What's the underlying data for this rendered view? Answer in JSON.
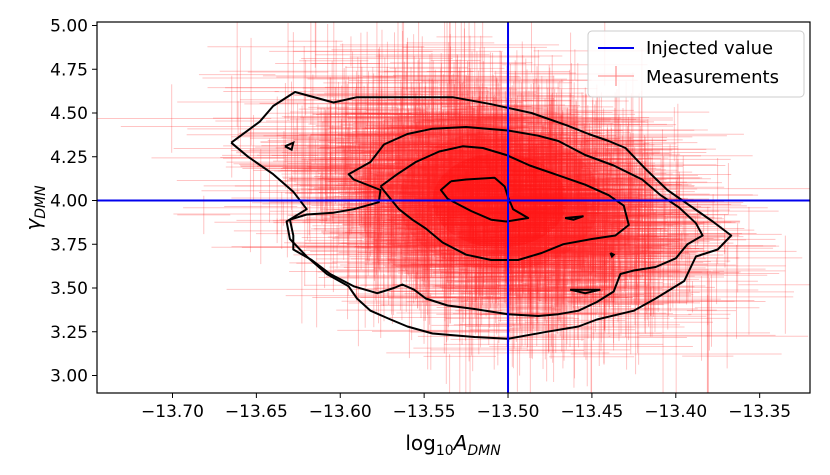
{
  "chart_data": {
    "type": "scatter",
    "title": "",
    "xlabel": "log10ADMN",
    "xlabel_parts": {
      "prefix": "log",
      "sub": "10",
      "symbol": "A",
      "symbol_sub": "DMN"
    },
    "ylabel": "γDMN",
    "ylabel_parts": {
      "symbol": "γ",
      "symbol_sub": "DMN"
    },
    "xlim": [
      -13.745,
      -13.32
    ],
    "ylim": [
      2.9,
      5.02
    ],
    "x_ticks": [
      -13.7,
      -13.65,
      -13.6,
      -13.55,
      -13.5,
      -13.45,
      -13.4,
      -13.35
    ],
    "x_tick_labels": [
      "−13.70",
      "−13.65",
      "−13.60",
      "−13.55",
      "−13.50",
      "−13.45",
      "−13.40",
      "−13.35"
    ],
    "y_ticks": [
      3.0,
      3.25,
      3.5,
      3.75,
      4.0,
      4.25,
      4.5,
      4.75,
      5.0
    ],
    "y_tick_labels": [
      "3.00",
      "3.25",
      "3.50",
      "3.75",
      "4.00",
      "4.25",
      "4.50",
      "4.75",
      "5.00"
    ],
    "grid": false,
    "injected_value": {
      "x": -13.5,
      "y": 4.0
    },
    "legend": {
      "position": "upper-right",
      "entries": [
        {
          "label": "Injected value",
          "style": "line",
          "color": "#0000ee"
        },
        {
          "label": "Measurements",
          "style": "errorbar",
          "color": "#ff8080"
        }
      ]
    },
    "measurement_cloud": {
      "n_points": 2000,
      "center_x": -13.505,
      "center_y": 4.0,
      "sigma_x": 0.052,
      "sigma_y": 0.32,
      "correlation": -0.35,
      "typical_x_error": 0.04,
      "typical_y_error": 0.22,
      "color": "#ff2a2a"
    },
    "contours": [
      {
        "level": "outer",
        "points": [
          [
            -13.665,
            4.33
          ],
          [
            -13.648,
            4.45
          ],
          [
            -13.64,
            4.54
          ],
          [
            -13.627,
            4.62
          ],
          [
            -13.604,
            4.56
          ],
          [
            -13.59,
            4.59
          ],
          [
            -13.567,
            4.59
          ],
          [
            -13.552,
            4.59
          ],
          [
            -13.533,
            4.59
          ],
          [
            -13.51,
            4.55
          ],
          [
            -13.486,
            4.5
          ],
          [
            -13.465,
            4.43
          ],
          [
            -13.452,
            4.38
          ],
          [
            -13.44,
            4.34
          ],
          [
            -13.43,
            4.3
          ],
          [
            -13.418,
            4.18
          ],
          [
            -13.405,
            4.06
          ],
          [
            -13.39,
            3.96
          ],
          [
            -13.378,
            3.88
          ],
          [
            -13.367,
            3.8
          ],
          [
            -13.375,
            3.72
          ],
          [
            -13.388,
            3.68
          ],
          [
            -13.395,
            3.54
          ],
          [
            -13.412,
            3.44
          ],
          [
            -13.425,
            3.37
          ],
          [
            -13.447,
            3.32
          ],
          [
            -13.458,
            3.28
          ],
          [
            -13.477,
            3.25
          ],
          [
            -13.5,
            3.21
          ],
          [
            -13.52,
            3.22
          ],
          [
            -13.545,
            3.24
          ],
          [
            -13.56,
            3.28
          ],
          [
            -13.57,
            3.32
          ],
          [
            -13.582,
            3.37
          ],
          [
            -13.59,
            3.44
          ],
          [
            -13.595,
            3.51
          ],
          [
            -13.608,
            3.58
          ],
          [
            -13.62,
            3.68
          ],
          [
            -13.63,
            3.78
          ],
          [
            -13.632,
            3.88
          ],
          [
            -13.62,
            3.95
          ],
          [
            -13.628,
            4.05
          ],
          [
            -13.64,
            4.15
          ],
          [
            -13.655,
            4.25
          ],
          [
            -13.665,
            4.33
          ]
        ]
      },
      {
        "level": "middle",
        "points": [
          [
            -13.63,
            3.89
          ],
          [
            -13.62,
            3.92
          ],
          [
            -13.604,
            3.93
          ],
          [
            -13.592,
            3.95
          ],
          [
            -13.577,
            3.99
          ],
          [
            -13.576,
            4.06
          ],
          [
            -13.592,
            4.12
          ],
          [
            -13.595,
            4.15
          ],
          [
            -13.582,
            4.22
          ],
          [
            -13.574,
            4.32
          ],
          [
            -13.56,
            4.38
          ],
          [
            -13.545,
            4.41
          ],
          [
            -13.525,
            4.42
          ],
          [
            -13.5,
            4.4
          ],
          [
            -13.482,
            4.37
          ],
          [
            -13.47,
            4.34
          ],
          [
            -13.454,
            4.26
          ],
          [
            -13.437,
            4.2
          ],
          [
            -13.42,
            4.12
          ],
          [
            -13.409,
            4.03
          ],
          [
            -13.398,
            3.96
          ],
          [
            -13.388,
            3.87
          ],
          [
            -13.384,
            3.8
          ],
          [
            -13.393,
            3.75
          ],
          [
            -13.4,
            3.67
          ],
          [
            -13.412,
            3.62
          ],
          [
            -13.425,
            3.6
          ],
          [
            -13.433,
            3.58
          ],
          [
            -13.437,
            3.48
          ],
          [
            -13.447,
            3.42
          ],
          [
            -13.458,
            3.37
          ],
          [
            -13.47,
            3.35
          ],
          [
            -13.482,
            3.34
          ],
          [
            -13.5,
            3.35
          ],
          [
            -13.52,
            3.38
          ],
          [
            -13.536,
            3.4
          ],
          [
            -13.549,
            3.44
          ],
          [
            -13.556,
            3.49
          ],
          [
            -13.563,
            3.52
          ],
          [
            -13.568,
            3.5
          ],
          [
            -13.578,
            3.47
          ],
          [
            -13.592,
            3.51
          ],
          [
            -13.606,
            3.58
          ],
          [
            -13.617,
            3.66
          ],
          [
            -13.628,
            3.72
          ],
          [
            -13.628,
            3.8
          ],
          [
            -13.63,
            3.89
          ]
        ]
      },
      {
        "level": "inner",
        "points": [
          [
            -13.576,
            4.08
          ],
          [
            -13.566,
            4.15
          ],
          [
            -13.555,
            4.22
          ],
          [
            -13.541,
            4.28
          ],
          [
            -13.527,
            4.31
          ],
          [
            -13.515,
            4.3
          ],
          [
            -13.501,
            4.26
          ],
          [
            -13.487,
            4.2
          ],
          [
            -13.472,
            4.15
          ],
          [
            -13.454,
            4.09
          ],
          [
            -13.44,
            4.03
          ],
          [
            -13.431,
            3.97
          ],
          [
            -13.428,
            3.86
          ],
          [
            -13.436,
            3.8
          ],
          [
            -13.45,
            3.78
          ],
          [
            -13.467,
            3.75
          ],
          [
            -13.48,
            3.7
          ],
          [
            -13.494,
            3.66
          ],
          [
            -13.51,
            3.66
          ],
          [
            -13.525,
            3.69
          ],
          [
            -13.539,
            3.76
          ],
          [
            -13.549,
            3.84
          ],
          [
            -13.557,
            3.89
          ],
          [
            -13.565,
            3.95
          ],
          [
            -13.576,
            4.08
          ]
        ]
      },
      {
        "level": "core",
        "points": [
          [
            -13.534,
            4.11
          ],
          [
            -13.525,
            4.12
          ],
          [
            -13.508,
            4.13
          ],
          [
            -13.502,
            4.08
          ],
          [
            -13.5,
            4.02
          ],
          [
            -13.497,
            3.95
          ],
          [
            -13.488,
            3.9
          ],
          [
            -13.501,
            3.88
          ],
          [
            -13.51,
            3.89
          ],
          [
            -13.522,
            3.94
          ],
          [
            -13.536,
            4.01
          ],
          [
            -13.54,
            4.06
          ],
          [
            -13.534,
            4.11
          ]
        ]
      }
    ],
    "small_islands": [
      [
        [
          -13.633,
          4.31
        ],
        [
          -13.628,
          4.33
        ],
        [
          -13.629,
          4.29
        ],
        [
          -13.633,
          4.31
        ]
      ],
      [
        [
          -13.466,
          3.9
        ],
        [
          -13.455,
          3.91
        ],
        [
          -13.461,
          3.89
        ],
        [
          -13.466,
          3.9
        ]
      ],
      [
        [
          -13.463,
          3.49
        ],
        [
          -13.445,
          3.49
        ],
        [
          -13.454,
          3.47
        ],
        [
          -13.463,
          3.49
        ]
      ],
      [
        [
          -13.439,
          3.7
        ],
        [
          -13.437,
          3.69
        ],
        [
          -13.438,
          3.68
        ],
        [
          -13.439,
          3.7
        ]
      ]
    ]
  }
}
